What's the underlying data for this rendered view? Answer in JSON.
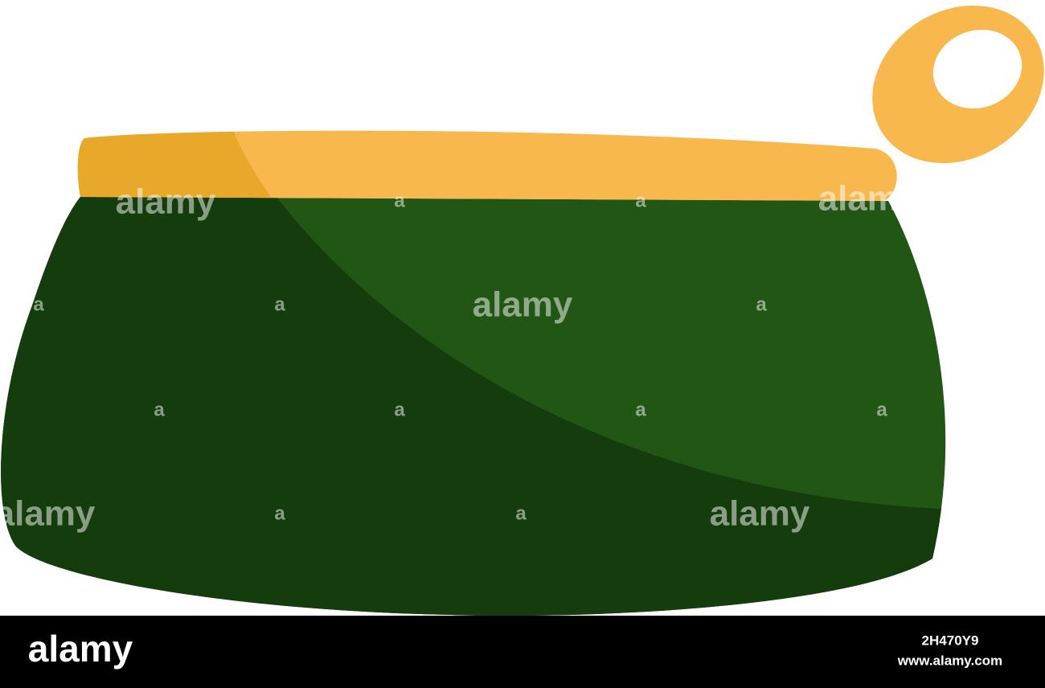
{
  "watermarks": [
    "alamy",
    "alamy",
    "alamy",
    "alamy",
    "alamy",
    "a",
    "a",
    "a",
    "a",
    "a",
    "a",
    "a",
    "a",
    "a",
    "a",
    "a"
  ],
  "footer": {
    "logo": "alamy",
    "image_id": "2H470Y9",
    "url": "www.alamy.com"
  }
}
